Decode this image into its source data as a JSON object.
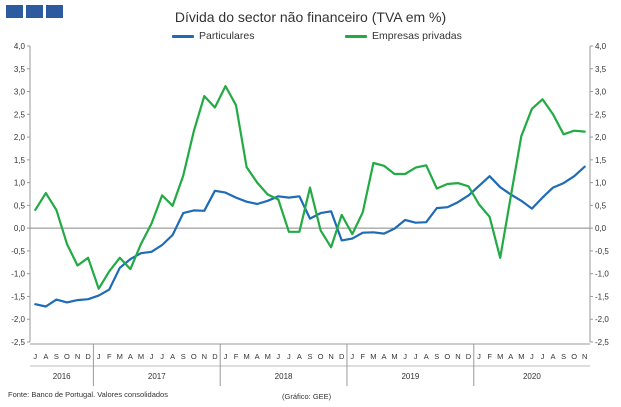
{
  "header": {
    "logo_squares": 3,
    "logo_color": "#2e5aa0"
  },
  "chart_data": {
    "type": "line",
    "title": "Dívida do sector não financeiro (TVA em %)",
    "ylim": [
      -2.5,
      4.0
    ],
    "y_ticks": [
      "4,0",
      "3,5",
      "3,0",
      "2,5",
      "2,0",
      "1,5",
      "1,0",
      "0,5",
      "0,0",
      "-0,5",
      "-1,0",
      "-1,5",
      "-2,0",
      "-2,5"
    ],
    "y_tick_values": [
      4.0,
      3.5,
      3.0,
      2.5,
      2.0,
      1.5,
      1.0,
      0.5,
      0.0,
      -0.5,
      -1.0,
      -1.5,
      -2.0,
      -2.5
    ],
    "grid": false,
    "legend_position": "top-center",
    "months": [
      "J",
      "A",
      "S",
      "O",
      "N",
      "D",
      "J",
      "F",
      "M",
      "A",
      "M",
      "J",
      "J",
      "A",
      "S",
      "O",
      "N",
      "D",
      "J",
      "F",
      "M",
      "A",
      "M",
      "J",
      "J",
      "A",
      "S",
      "O",
      "N",
      "D",
      "J",
      "F",
      "M",
      "A",
      "M",
      "J",
      "J",
      "A",
      "S",
      "O",
      "N",
      "D",
      "J",
      "F",
      "M",
      "A",
      "M",
      "J",
      "J",
      "A",
      "S",
      "O",
      "N"
    ],
    "years": [
      {
        "label": "2016",
        "count": 6
      },
      {
        "label": "2017",
        "count": 12
      },
      {
        "label": "2018",
        "count": 12
      },
      {
        "label": "2019",
        "count": 12
      },
      {
        "label": "2020",
        "count": 11
      }
    ],
    "series": [
      {
        "name": "Particulares",
        "color": "#1f6bb5",
        "values": [
          -1.67,
          -1.72,
          -1.57,
          -1.63,
          -1.58,
          -1.56,
          -1.48,
          -1.35,
          -0.87,
          -0.68,
          -0.55,
          -0.52,
          -0.37,
          -0.15,
          0.33,
          0.39,
          0.38,
          0.82,
          0.78,
          0.67,
          0.58,
          0.53,
          0.6,
          0.7,
          0.67,
          0.7,
          0.21,
          0.33,
          0.37,
          -0.27,
          -0.23,
          -0.1,
          -0.09,
          -0.12,
          -0.01,
          0.18,
          0.12,
          0.13,
          0.44,
          0.46,
          0.57,
          0.72,
          0.93,
          1.14,
          0.9,
          0.74,
          0.6,
          0.43,
          0.67,
          0.89,
          0.99,
          1.14,
          1.35
        ]
      },
      {
        "name": "Empresas privadas",
        "color": "#22aa44",
        "values": [
          0.4,
          0.77,
          0.4,
          -0.35,
          -0.82,
          -0.65,
          -1.33,
          -0.95,
          -0.65,
          -0.9,
          -0.35,
          0.1,
          0.72,
          0.49,
          1.15,
          2.13,
          2.9,
          2.65,
          3.12,
          2.7,
          1.34,
          1.0,
          0.74,
          0.63,
          -0.08,
          -0.08,
          0.89,
          -0.05,
          -0.42,
          0.29,
          -0.13,
          0.35,
          1.43,
          1.37,
          1.19,
          1.19,
          1.33,
          1.38,
          0.87,
          0.97,
          0.99,
          0.92,
          0.52,
          0.25,
          -0.65,
          0.7,
          2.02,
          2.62,
          2.83,
          2.5,
          2.06,
          2.14,
          2.12
        ]
      }
    ]
  },
  "footer": {
    "source": "Fonte: Banco de Portugal. Valores consolidados",
    "credit": "(Gráfico: GEE)"
  }
}
